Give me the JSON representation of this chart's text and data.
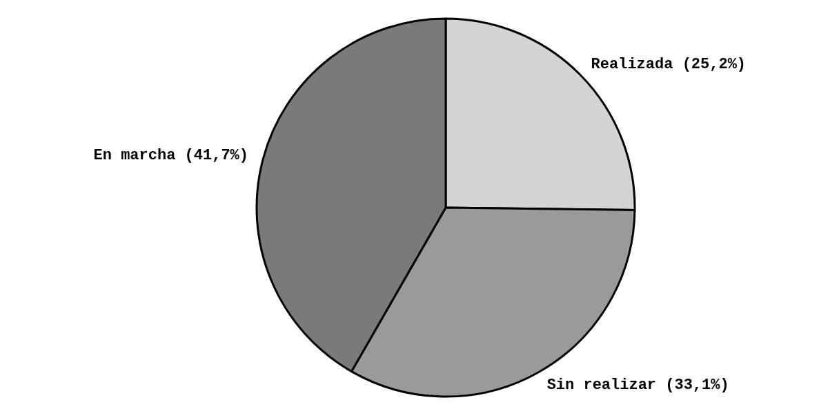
{
  "chart_data": {
    "type": "pie",
    "categories": [
      "Realizada",
      "Sin realizar",
      "En marcha"
    ],
    "values": [
      25.2,
      33.1,
      41.7
    ],
    "value_labels": [
      "(25,2%)",
      "(33,1%)",
      "(41,7%)"
    ],
    "colors": [
      "#d4d4d4",
      "#9a9a9a",
      "#7a7a7a"
    ],
    "legend": false
  }
}
